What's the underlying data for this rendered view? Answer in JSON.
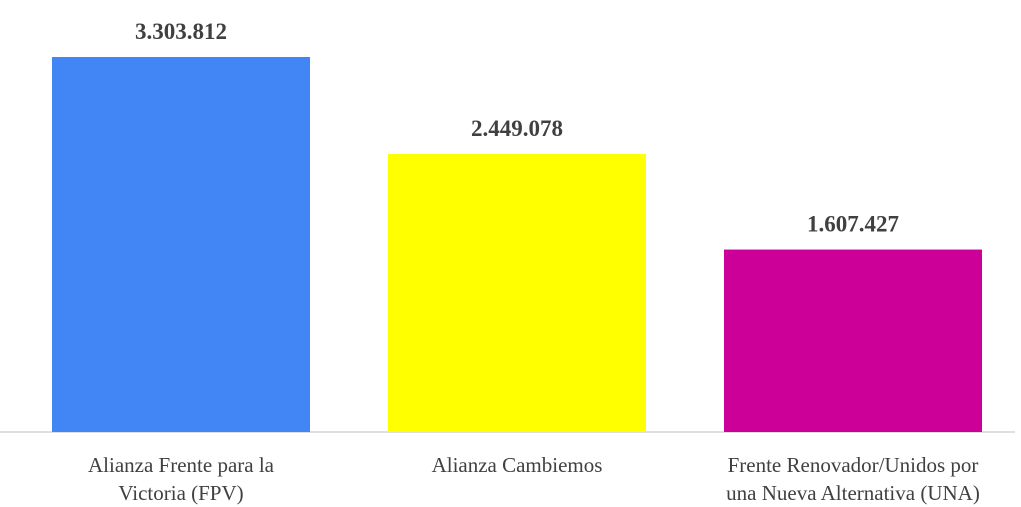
{
  "chart_data": {
    "type": "bar",
    "categories": [
      "Alianza Frente para la\nVictoria (FPV)",
      "Alianza Cambiemos",
      "Frente Renovador/Unidos por\nuna Nueva Alternativa (UNA)"
    ],
    "values": [
      3303812,
      2449078,
      1607427
    ],
    "value_labels": [
      "3.303.812",
      "2.449.078",
      "1.607.427"
    ],
    "colors": [
      "#4285f4",
      "#ffff00",
      "#cc0099"
    ]
  }
}
